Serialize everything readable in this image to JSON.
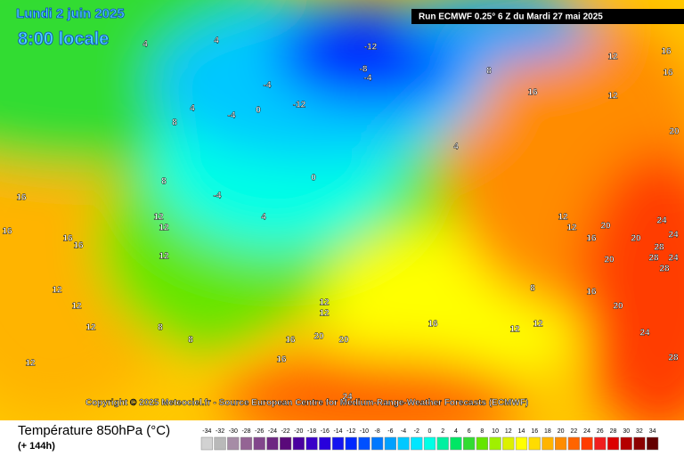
{
  "header": {
    "date": "Lundi 2 juin 2025",
    "time": "8:00 locale",
    "run": "Run ECMWF 0.25° 6 Z du Mardi 27 mai 2025"
  },
  "copyright": "Copyright © 2025 Meteociel.fr - Source European Centre for Medium-Range-Weather Forecasts (ECMWF)",
  "footer": {
    "title": "Température 850hPa (°C)",
    "lead": "(+ 144h)"
  },
  "legend": {
    "ticks": [
      -34,
      -32,
      -30,
      -28,
      -26,
      -24,
      -22,
      -20,
      -18,
      -16,
      -14,
      -12,
      -10,
      -8,
      -6,
      -4,
      -2,
      0,
      2,
      4,
      6,
      8,
      10,
      12,
      14,
      16,
      18,
      20,
      22,
      24,
      26,
      28,
      30,
      32,
      34
    ],
    "colors": [
      "#d2d2d2",
      "#b9b9b9",
      "#a68ca6",
      "#946494",
      "#82468c",
      "#6e2882",
      "#5a0a7a",
      "#4a00a0",
      "#3a00c8",
      "#2800dc",
      "#1414f0",
      "#0028ff",
      "#0050ff",
      "#0078ff",
      "#00a0ff",
      "#00c8ff",
      "#00e6ff",
      "#00ffe6",
      "#00f0a0",
      "#00e664",
      "#32dc32",
      "#64e600",
      "#a0f000",
      "#dcf000",
      "#ffff00",
      "#ffdc00",
      "#ffb400",
      "#ff8c00",
      "#ff6400",
      "#ff3c00",
      "#f01e1e",
      "#dc0000",
      "#b40000",
      "#8c0000",
      "#640000"
    ]
  },
  "contour_labels": [
    4,
    4,
    -12,
    -8,
    -4,
    -4,
    0,
    -12,
    -4,
    4,
    8,
    8,
    16,
    12,
    12,
    16,
    16,
    20,
    4,
    0,
    -4,
    4,
    8,
    16,
    16,
    12,
    12,
    16,
    16,
    12,
    12,
    12,
    12,
    8,
    8,
    12,
    12,
    16,
    20,
    20,
    16,
    16,
    12,
    12,
    8,
    12,
    12,
    16,
    20,
    20,
    20,
    24,
    24,
    28,
    24,
    28,
    28,
    16,
    20,
    24,
    28,
    12,
    24
  ]
}
